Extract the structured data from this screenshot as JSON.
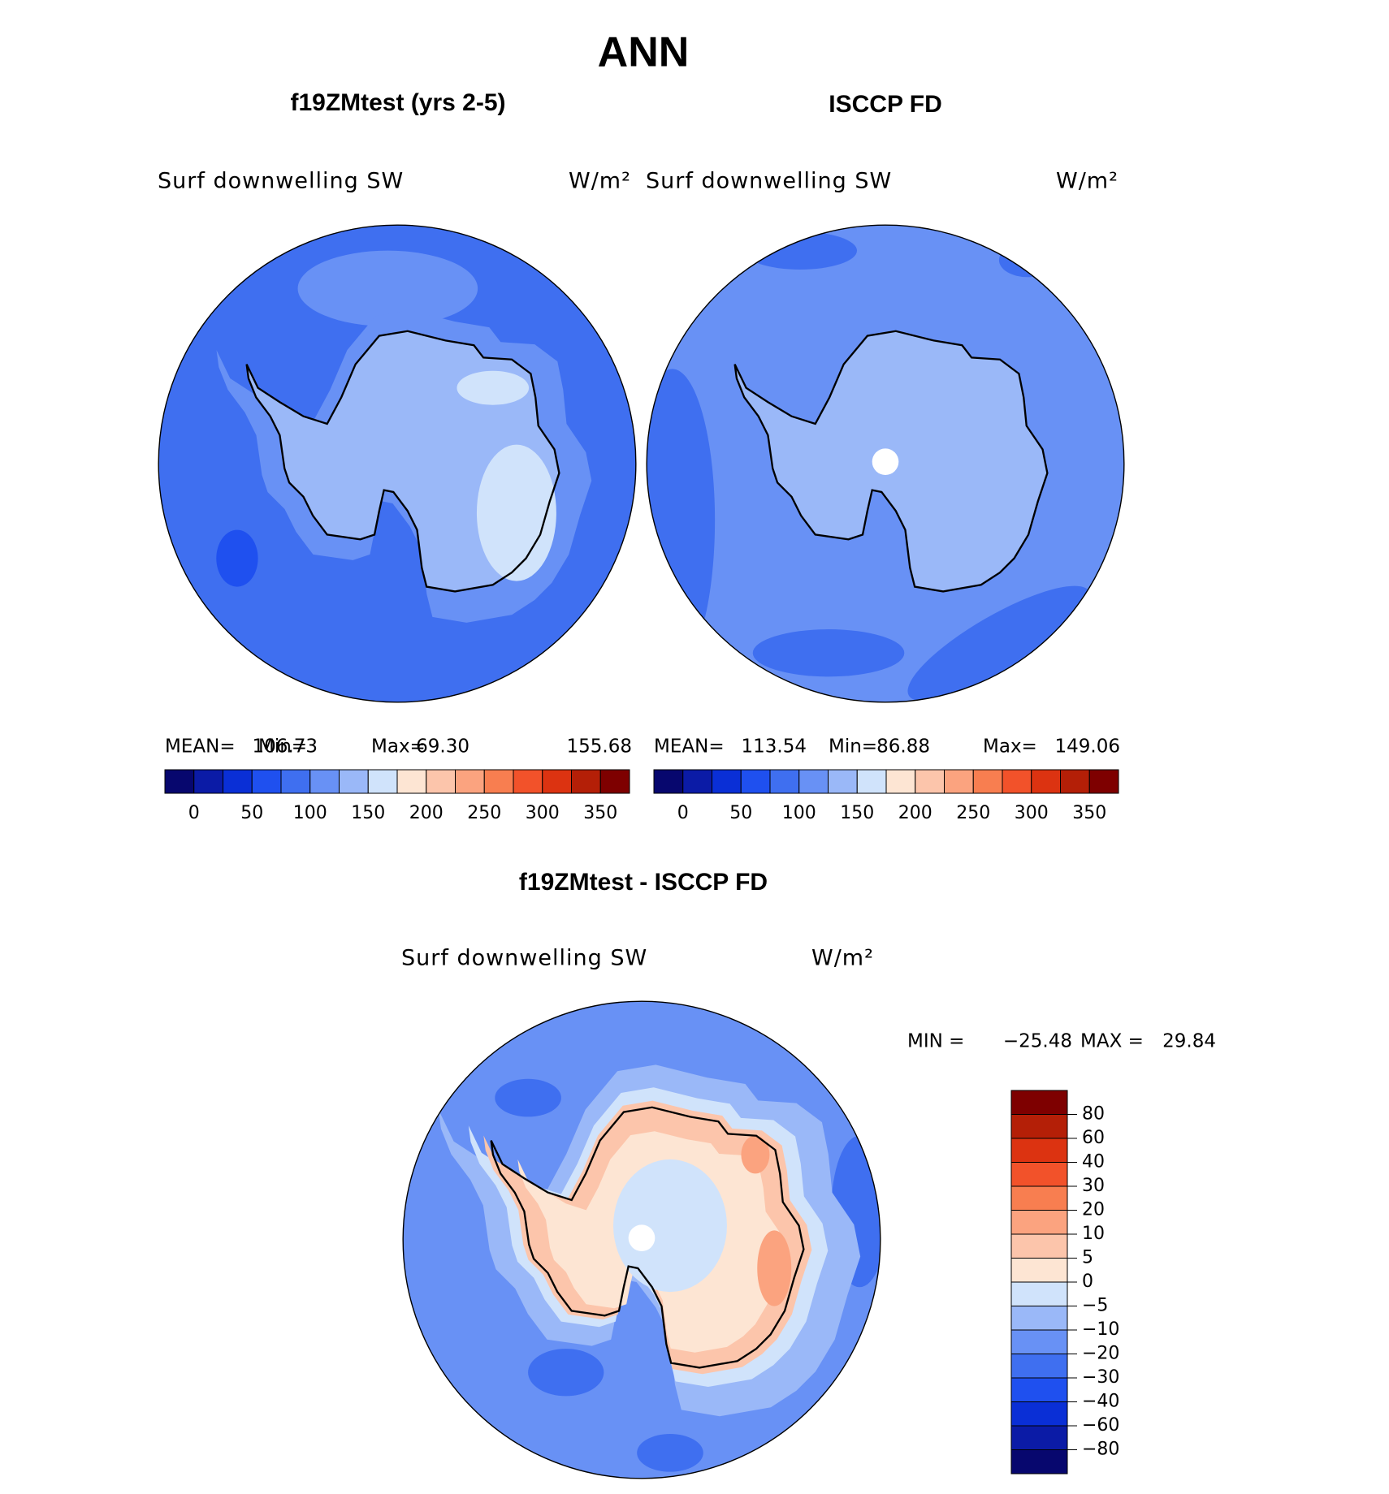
{
  "title": "ANN",
  "panels": [
    {
      "title": "f19ZMtest (yrs 2-5)",
      "variable": "Surf downwelling SW",
      "units": "W/m²",
      "stats": [
        {
          "label": "MEAN=",
          "value": "106.73"
        },
        {
          "label": "Min=",
          "value": "69.30"
        },
        {
          "label": "Max=",
          "value": "155.68"
        }
      ]
    },
    {
      "title": "ISCCP FD",
      "variable": "Surf downwelling SW",
      "units": "W/m²",
      "stats": [
        {
          "label": "MEAN=",
          "value": "113.54"
        },
        {
          "label": "Min=",
          "value": "86.88"
        },
        {
          "label": "Max=",
          "value": "149.06"
        }
      ]
    }
  ],
  "colorbar": {
    "colors": [
      "#07076e",
      "#0b1ba6",
      "#0a2fd6",
      "#1f50ef",
      "#3f6ff0",
      "#6891f5",
      "#9ab8f8",
      "#d0e3fb",
      "#fde5d3",
      "#fcc5ab",
      "#fba37f",
      "#f87e50",
      "#f2522a",
      "#dc3311",
      "#b41f07",
      "#7e0000"
    ],
    "labels": [
      "0",
      "50",
      "100",
      "150",
      "200",
      "250",
      "300",
      "350"
    ]
  },
  "difference": {
    "title": "f19ZMtest - ISCCP FD",
    "variable": "Surf downwelling SW",
    "units": "W/m²",
    "stats": [
      {
        "label": "MIN =",
        "value": "−25.48"
      },
      {
        "label": "MAX =",
        "value": "29.84"
      }
    ],
    "colorbar": {
      "colors": [
        "#07076e",
        "#0b1ba6",
        "#0a2fd6",
        "#1f50ef",
        "#3f6ff0",
        "#6891f5",
        "#9ab8f8",
        "#d0e3fb",
        "#fde5d3",
        "#fcc5ab",
        "#fba37f",
        "#f87e50",
        "#f2522a",
        "#dc3311",
        "#b41f07",
        "#7e0000"
      ],
      "labels": [
        "−80",
        "−60",
        "−40",
        "−30",
        "−20",
        "−10",
        "−5",
        "0",
        "5",
        "10",
        "20",
        "30",
        "40",
        "60",
        "80"
      ]
    }
  }
}
